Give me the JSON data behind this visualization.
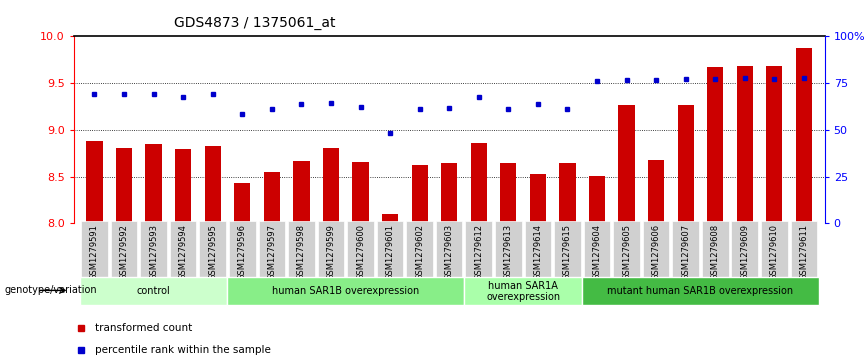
{
  "title": "GDS4873 / 1375061_at",
  "samples": [
    "GSM1279591",
    "GSM1279592",
    "GSM1279593",
    "GSM1279594",
    "GSM1279595",
    "GSM1279596",
    "GSM1279597",
    "GSM1279598",
    "GSM1279599",
    "GSM1279600",
    "GSM1279601",
    "GSM1279602",
    "GSM1279603",
    "GSM1279612",
    "GSM1279613",
    "GSM1279614",
    "GSM1279615",
    "GSM1279604",
    "GSM1279605",
    "GSM1279606",
    "GSM1279607",
    "GSM1279608",
    "GSM1279609",
    "GSM1279610",
    "GSM1279611"
  ],
  "bar_values": [
    8.88,
    8.81,
    8.85,
    8.79,
    8.83,
    8.43,
    8.55,
    8.67,
    8.81,
    8.65,
    8.1,
    8.62,
    8.64,
    8.86,
    8.64,
    8.53,
    8.64,
    8.51,
    9.26,
    8.68,
    9.26,
    9.67,
    9.68,
    9.68,
    9.88
  ],
  "dot_values": [
    9.38,
    9.38,
    9.38,
    9.35,
    9.38,
    9.17,
    9.22,
    9.28,
    9.29,
    9.24,
    8.97,
    9.22,
    9.23,
    9.35,
    9.22,
    9.28,
    9.22,
    9.52,
    9.53,
    9.53,
    9.54,
    9.54,
    9.55,
    9.54,
    9.55
  ],
  "bar_color": "#cc0000",
  "dot_color": "#0000cc",
  "ylim_left": [
    8.0,
    10.0
  ],
  "ylim_right": [
    0,
    100
  ],
  "yticks_left": [
    8.0,
    8.5,
    9.0,
    9.5,
    10.0
  ],
  "yticks_right": [
    0,
    25,
    50,
    75,
    100
  ],
  "ytick_labels_right": [
    "0",
    "25",
    "50",
    "75",
    "100%"
  ],
  "groups": [
    {
      "label": "control",
      "start": 0,
      "end": 5,
      "color": "#ccffcc"
    },
    {
      "label": "human SAR1B overexpression",
      "start": 5,
      "end": 13,
      "color": "#88ee88"
    },
    {
      "label": "human SAR1A\noverexpression",
      "start": 13,
      "end": 17,
      "color": "#aaffaa"
    },
    {
      "label": "mutant human SAR1B overexpression",
      "start": 17,
      "end": 25,
      "color": "#44bb44"
    }
  ],
  "xlabel_label": "genotype/variation",
  "legend_items": [
    {
      "label": "transformed count",
      "color": "#cc0000"
    },
    {
      "label": "percentile rank within the sample",
      "color": "#0000cc"
    }
  ]
}
